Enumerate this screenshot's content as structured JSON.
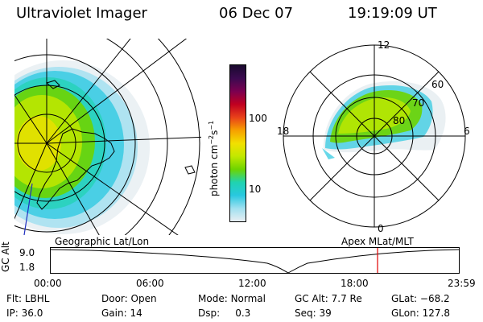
{
  "header": {
    "instrument": "Ultraviolet Imager",
    "date": "06 Dec 07",
    "time": "19:19:09 UT"
  },
  "colorbar": {
    "unit_label": "photon cm",
    "unit_exp1": "−2",
    "unit_s": "s",
    "unit_exp2": "−1",
    "ticks": [
      "100",
      "10"
    ],
    "colors": [
      "#1a0a2e",
      "#3b0a50",
      "#7a0050",
      "#c00020",
      "#e8401a",
      "#f7a000",
      "#f2e000",
      "#c2e800",
      "#6ed400",
      "#1fd3b0",
      "#28c8e0",
      "#a0e0f0",
      "#e8eef2"
    ]
  },
  "polar_plot": {
    "mlt_labels": {
      "top": "12",
      "right": "6",
      "bottom": "0",
      "left": "18"
    },
    "mlat_labels": [
      "60",
      "70",
      "80"
    ]
  },
  "projection_labels": {
    "left": "Geographic Lat/Lon",
    "right": "Apex MLat/MLT"
  },
  "timeline": {
    "y_axis_label": "GC Alt",
    "y_ticks": [
      "9.0",
      "1.8"
    ],
    "x_ticks": [
      "00:00",
      "06:00",
      "12:00",
      "18:00",
      "23:59"
    ],
    "current_time_marker_color": "#e00000"
  },
  "status": {
    "filter": {
      "label": "Flt:",
      "value": "LBHL"
    },
    "ip": {
      "label": "IP:",
      "value": "36.0"
    },
    "door": {
      "label": "Door:",
      "value": "Open"
    },
    "gain": {
      "label": "Gain:",
      "value": "14"
    },
    "mode": {
      "label": "Mode:",
      "value": "Normal"
    },
    "dsp": {
      "label": "Dsp:",
      "value": "0.3"
    },
    "gc_alt": {
      "label": "GC Alt:",
      "value": "7.7 Re"
    },
    "seq": {
      "label": "Seq:",
      "value": "39"
    },
    "glat": {
      "label": "GLat:",
      "value": "−68.2"
    },
    "glon": {
      "label": "GLon:",
      "value": "127.8"
    }
  }
}
